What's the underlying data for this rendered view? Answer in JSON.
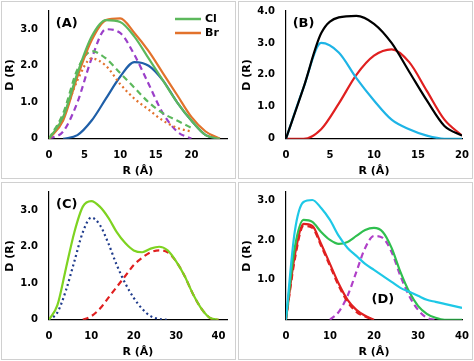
{
  "chart_data": [
    {
      "type": "line",
      "title": "(A)",
      "x_label": "R (Å)",
      "y_label": "D (R)",
      "legend": "upper right",
      "grid": false,
      "xlim": [
        0,
        25
      ],
      "xticks": [
        0,
        5,
        10,
        15,
        20
      ],
      "ylim": [
        0,
        3.5
      ],
      "yticks": [
        0,
        {
          "value": 1,
          "label": "1.0"
        },
        {
          "value": 2,
          "label": "2.0"
        },
        {
          "value": 3,
          "label": "3.0"
        }
      ],
      "x": [
        0,
        2,
        4,
        6,
        8,
        10,
        12,
        14,
        16,
        18,
        20,
        22,
        24
      ],
      "series": [
        {
          "name": "Cl",
          "color": "#5cb85c",
          "line_style": "solid",
          "values": [
            0,
            0.6,
            1.8,
            2.8,
            3.25,
            3.2,
            2.8,
            2.2,
            1.6,
            1.0,
            0.5,
            0.1,
            0
          ]
        },
        {
          "name": "Br",
          "color": "#e2722c",
          "line_style": "solid",
          "values": [
            0,
            0.5,
            1.7,
            2.7,
            3.25,
            3.3,
            2.9,
            2.4,
            1.8,
            1.2,
            0.6,
            0.2,
            0
          ]
        },
        {
          "color": "#5cb85c",
          "line_style": "dashed",
          "values": [
            0,
            0.7,
            1.9,
            2.4,
            2.2,
            1.8,
            1.4,
            1.0,
            0.7,
            0.5,
            0.3,
            null,
            null
          ]
        },
        {
          "color": "#e2722c",
          "line_style": "dotted",
          "values": [
            0,
            0.6,
            1.6,
            2.2,
            2.0,
            1.5,
            1.1,
            0.8,
            0.5,
            0.3,
            0.2,
            null,
            null
          ]
        },
        {
          "color": "#9b3fc9",
          "line_style": "dashed",
          "values": [
            0,
            0.2,
            1.0,
            2.2,
            3.0,
            2.9,
            2.3,
            1.5,
            0.7,
            0.2,
            0,
            null,
            null
          ]
        },
        {
          "color": "#1f5fa8",
          "line_style": "solid",
          "values": [
            null,
            0,
            0.1,
            0.5,
            1.1,
            1.7,
            2.1,
            2.0,
            1.6,
            1.0,
            0.5,
            0.1,
            0
          ]
        }
      ]
    },
    {
      "type": "line",
      "title": "(B)",
      "x_label": "R (Å)",
      "y_label": "D (R)",
      "grid": false,
      "xlim": [
        0,
        20
      ],
      "xticks": [
        0,
        5,
        10,
        15,
        20
      ],
      "ylim": [
        0,
        4
      ],
      "yticks": [
        0,
        {
          "value": 1,
          "label": "1.0"
        },
        {
          "value": 2,
          "label": "2.0"
        },
        {
          "value": 3,
          "label": "3.0"
        },
        {
          "value": 4,
          "label": "4.0"
        }
      ],
      "x": [
        0,
        2,
        4,
        6,
        8,
        10,
        12,
        14,
        16,
        18,
        20
      ],
      "series": [
        {
          "color": "#000000",
          "line_style": "solid",
          "values": [
            0,
            1.6,
            3.3,
            3.8,
            3.85,
            3.6,
            3.0,
            2.1,
            1.2,
            0.4,
            0.1
          ]
        },
        {
          "color": "#1eb4e6",
          "line_style": "solid",
          "values": [
            0,
            1.6,
            3.0,
            2.7,
            1.9,
            1.2,
            0.6,
            0.3,
            0.1,
            0,
            0
          ]
        },
        {
          "color": "#e02020",
          "line_style": "solid",
          "values": [
            0,
            0,
            0.3,
            1.1,
            2.0,
            2.6,
            2.8,
            2.4,
            1.5,
            0.6,
            0.1
          ]
        }
      ]
    },
    {
      "type": "line",
      "title": "(C)",
      "x_label": "R (Å)",
      "y_label": "D (R)",
      "grid": false,
      "xlim": [
        0,
        42
      ],
      "xticks": [
        0,
        10,
        20,
        30,
        40
      ],
      "ylim": [
        0,
        3.5
      ],
      "yticks": [
        0,
        {
          "value": 1,
          "label": "1.0"
        },
        {
          "value": 2,
          "label": "2.0"
        },
        {
          "value": 3,
          "label": "3.0"
        }
      ],
      "x": [
        0,
        2,
        4,
        6,
        8,
        10,
        12,
        14,
        16,
        18,
        20,
        22,
        24,
        26,
        28,
        30,
        32,
        34,
        36,
        38,
        40
      ],
      "series": [
        {
          "color": "#7ed321",
          "line_style": "solid",
          "values": [
            0,
            0.4,
            1.4,
            2.4,
            3.1,
            3.25,
            3.1,
            2.8,
            2.4,
            2.1,
            1.9,
            1.85,
            1.95,
            2.0,
            1.9,
            1.6,
            1.2,
            0.7,
            0.3,
            0.05,
            0
          ]
        },
        {
          "color": "#1f3b8c",
          "line_style": "dotted",
          "values": [
            0,
            0.2,
            0.8,
            1.6,
            2.4,
            2.8,
            2.6,
            2.1,
            1.5,
            1.0,
            0.6,
            0.3,
            0.1,
            0.02,
            0,
            null,
            null,
            null,
            null,
            null,
            null
          ]
        },
        {
          "color": "#e02020",
          "line_style": "dashed",
          "values": [
            null,
            null,
            null,
            null,
            0,
            0.1,
            0.3,
            0.6,
            0.9,
            1.2,
            1.5,
            1.7,
            1.85,
            1.9,
            1.85,
            1.6,
            1.2,
            0.7,
            0.3,
            0.05,
            0
          ]
        }
      ]
    },
    {
      "type": "line",
      "title": "(D)",
      "grid": false,
      "xlim": [
        0,
        40
      ],
      "xticks": [
        0,
        10,
        20,
        30,
        40
      ],
      "x_label": "R (Å)",
      "y_label": "D (R)",
      "ylim": [
        0,
        3.2
      ],
      "yticks": [
        {
          "value": 1,
          "label": "1.0"
        },
        {
          "value": 2,
          "label": "2.0"
        },
        {
          "value": 3,
          "label": "3.0"
        }
      ],
      "x": [
        0,
        2,
        4,
        6,
        8,
        10,
        12,
        14,
        16,
        18,
        20,
        22,
        24,
        26,
        28,
        30,
        32,
        34,
        36,
        38,
        40
      ],
      "series": [
        {
          "color": "#1ec8e6",
          "line_style": "solid",
          "values": [
            0,
            2.2,
            2.95,
            3.0,
            2.8,
            2.5,
            2.1,
            1.8,
            1.6,
            1.4,
            1.25,
            1.1,
            0.95,
            0.8,
            0.7,
            0.6,
            0.5,
            0.45,
            0.4,
            0.35,
            0.3
          ]
        },
        {
          "color": "#2fbf4f",
          "line_style": "solid",
          "values": [
            0,
            1.8,
            2.5,
            2.45,
            2.2,
            2.0,
            1.9,
            1.95,
            2.1,
            2.25,
            2.3,
            2.2,
            1.8,
            1.2,
            0.7,
            0.35,
            0.15,
            0.05,
            0,
            0,
            0
          ]
        },
        {
          "color": "#e02020",
          "line_style": "solid",
          "values": [
            0,
            1.6,
            2.4,
            2.35,
            1.9,
            1.4,
            0.9,
            0.5,
            0.25,
            0.1,
            0,
            null,
            null,
            null,
            null,
            null,
            null,
            null,
            null,
            null,
            null
          ]
        },
        {
          "color": "#e02020",
          "line_style": "dashed",
          "values": [
            0,
            1.5,
            2.35,
            2.3,
            1.85,
            1.35,
            0.85,
            0.45,
            0.2,
            0.08,
            0,
            null,
            null,
            null,
            null,
            null,
            null,
            null,
            null,
            null,
            null
          ]
        },
        {
          "color": "#b040c8",
          "line_style": "dashed",
          "values": [
            null,
            null,
            null,
            null,
            null,
            0,
            0.2,
            0.6,
            1.2,
            1.8,
            2.1,
            2.05,
            1.7,
            1.1,
            0.6,
            0.25,
            0.05,
            0,
            null,
            null,
            null
          ]
        }
      ]
    }
  ]
}
